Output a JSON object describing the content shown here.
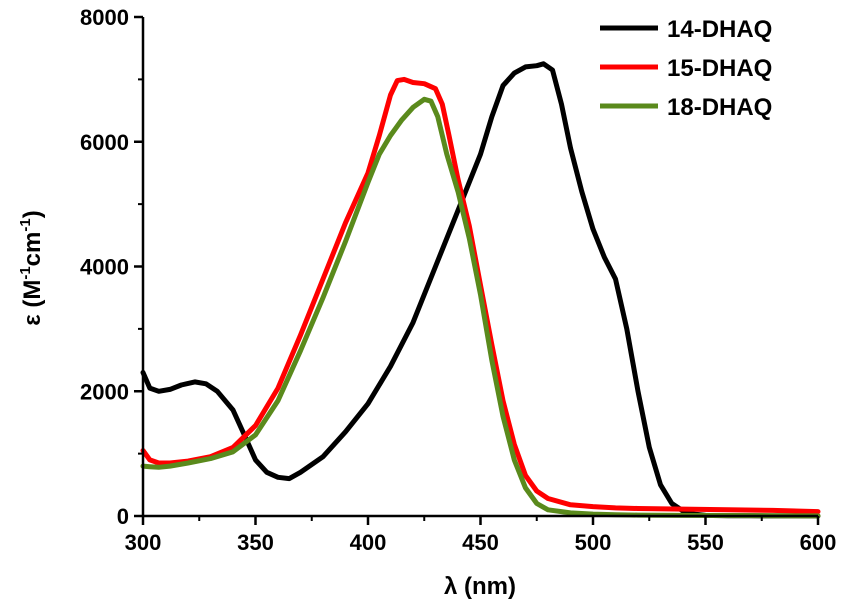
{
  "chart_data": {
    "type": "line",
    "xlabel": "λ (nm)",
    "ylabel_main": "ε (M",
    "ylabel_sup1": "-1",
    "ylabel_mid": "cm",
    "ylabel_sup2": "-1",
    "ylabel_end": ")",
    "xlim": [
      300,
      600
    ],
    "ylim": [
      0,
      8000
    ],
    "xticks": [
      300,
      350,
      400,
      450,
      500,
      550,
      600
    ],
    "yticks": [
      0,
      2000,
      4000,
      6000,
      8000
    ],
    "grid": false,
    "legend_position": "top-right",
    "series": [
      {
        "name": "14-DHAQ",
        "color": "#000000",
        "x": [
          300,
          303,
          307,
          312,
          317,
          323,
          328,
          333,
          340,
          345,
          350,
          355,
          360,
          365,
          370,
          380,
          390,
          400,
          410,
          420,
          430,
          440,
          450,
          455,
          460,
          465,
          470,
          475,
          478,
          482,
          486,
          490,
          495,
          500,
          505,
          510,
          515,
          520,
          525,
          530,
          535,
          540,
          545,
          550,
          560,
          570,
          580,
          590,
          600
        ],
        "y": [
          2300,
          2050,
          2000,
          2030,
          2100,
          2150,
          2120,
          2000,
          1700,
          1300,
          900,
          700,
          620,
          600,
          700,
          950,
          1350,
          1800,
          2400,
          3100,
          4000,
          4900,
          5800,
          6400,
          6900,
          7100,
          7200,
          7220,
          7250,
          7150,
          6600,
          5900,
          5200,
          4600,
          4150,
          3800,
          3000,
          2000,
          1100,
          500,
          200,
          80,
          30,
          10,
          5,
          3,
          2,
          1,
          0
        ]
      },
      {
        "name": "15-DHAQ",
        "color": "#ff0000",
        "x": [
          300,
          303,
          307,
          312,
          320,
          330,
          340,
          350,
          360,
          370,
          380,
          390,
          400,
          405,
          410,
          413,
          416,
          420,
          425,
          430,
          433,
          436,
          440,
          445,
          450,
          455,
          460,
          465,
          470,
          475,
          480,
          490,
          500,
          510,
          520,
          540,
          560,
          580,
          600
        ],
        "y": [
          1050,
          900,
          850,
          850,
          880,
          950,
          1100,
          1450,
          2050,
          2900,
          3800,
          4700,
          5500,
          6100,
          6750,
          6980,
          7000,
          6950,
          6930,
          6850,
          6600,
          6100,
          5400,
          4650,
          3700,
          2750,
          1850,
          1150,
          650,
          400,
          280,
          180,
          150,
          130,
          120,
          110,
          100,
          90,
          70
        ]
      },
      {
        "name": "18-DHAQ",
        "color": "#5a8a1c",
        "x": [
          300,
          303,
          307,
          312,
          320,
          330,
          340,
          350,
          360,
          370,
          380,
          390,
          400,
          405,
          410,
          415,
          420,
          425,
          428,
          431,
          435,
          440,
          445,
          450,
          455,
          460,
          465,
          470,
          475,
          480,
          490,
          500,
          510,
          520,
          540,
          560,
          580,
          600
        ],
        "y": [
          800,
          790,
          780,
          800,
          850,
          920,
          1030,
          1300,
          1850,
          2650,
          3500,
          4400,
          5350,
          5800,
          6100,
          6350,
          6550,
          6680,
          6650,
          6400,
          5800,
          5200,
          4450,
          3550,
          2500,
          1600,
          900,
          450,
          200,
          100,
          50,
          30,
          20,
          15,
          10,
          8,
          5,
          2
        ]
      }
    ]
  }
}
